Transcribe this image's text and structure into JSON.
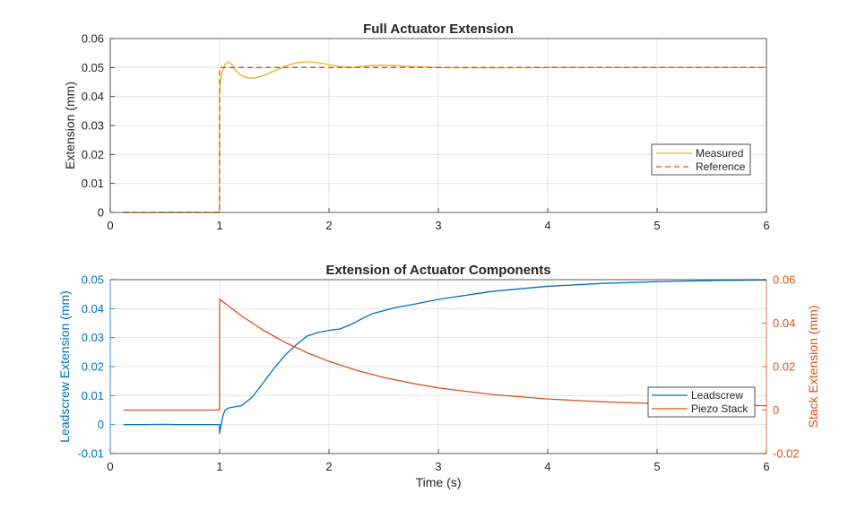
{
  "colors": {
    "measured": "#edb120",
    "reference": "#d95319",
    "leadscrew": "#0072bd",
    "piezo": "#d95319",
    "axis": "#262626",
    "grid": "#dfdfdf"
  },
  "chart_data": [
    {
      "type": "line",
      "title": "Full Actuator Extension",
      "xlabel": "",
      "ylabel": "Extension (mm)",
      "xlim": [
        0,
        6
      ],
      "ylim": [
        0,
        0.06
      ],
      "xticks": [
        "0",
        "1",
        "2",
        "3",
        "4",
        "5",
        "6"
      ],
      "yticks": [
        "0",
        "0.01",
        "0.02",
        "0.03",
        "0.04",
        "0.05",
        "0.06"
      ],
      "grid": true,
      "legend_position": "lower-right",
      "series": [
        {
          "name": "Measured",
          "style": "solid",
          "x": [
            0.12,
            0.999,
            1.0,
            1.005,
            1.02,
            1.05,
            1.08,
            1.1,
            1.13,
            1.16,
            1.2,
            1.25,
            1.3,
            1.35,
            1.4,
            1.5,
            1.6,
            1.7,
            1.8,
            1.9,
            2.0,
            2.1,
            2.2,
            2.3,
            2.4,
            2.5,
            2.6,
            2.8,
            3.0,
            3.5,
            4.0,
            5.0,
            6.0
          ],
          "y": [
            0,
            0,
            0.04,
            0.045,
            0.048,
            0.0512,
            0.0518,
            0.0515,
            0.05,
            0.0485,
            0.0472,
            0.0465,
            0.0463,
            0.0466,
            0.0472,
            0.0488,
            0.0505,
            0.0516,
            0.052,
            0.0517,
            0.051,
            0.0503,
            0.0501,
            0.0504,
            0.0507,
            0.0508,
            0.0507,
            0.0503,
            0.05,
            0.0499,
            0.05,
            0.05,
            0.05
          ]
        },
        {
          "name": "Reference",
          "style": "dashed",
          "x": [
            0.12,
            0.999,
            1.0,
            6.0
          ],
          "y": [
            0,
            0,
            0.05,
            0.05
          ]
        }
      ]
    },
    {
      "type": "line",
      "title": "Extension of Actuator Components",
      "xlabel": "Time (s)",
      "ylabel": "Leadscrew Extension (mm)",
      "ylabel_right": "Stack Extension (mm)",
      "xlim": [
        0,
        6
      ],
      "ylim": [
        -0.01,
        0.05
      ],
      "ylim_right": [
        -0.02,
        0.06
      ],
      "xticks": [
        "0",
        "1",
        "2",
        "3",
        "4",
        "5",
        "6"
      ],
      "yticks": [
        "-0.01",
        "0",
        "0.01",
        "0.02",
        "0.03",
        "0.04",
        "0.05"
      ],
      "yticks_right": [
        "-0.02",
        "0",
        "0.02",
        "0.04",
        "0.06"
      ],
      "grid": true,
      "legend_position": "lower-right",
      "series": [
        {
          "name": "Leadscrew",
          "axis": "left",
          "x": [
            0.12,
            0.3,
            0.5,
            0.6,
            0.8,
            0.999,
            1.0,
            1.01,
            1.03,
            1.05,
            1.08,
            1.12,
            1.2,
            1.3,
            1.4,
            1.5,
            1.6,
            1.7,
            1.8,
            1.9,
            2.0,
            2.1,
            2.2,
            2.3,
            2.4,
            2.6,
            2.8,
            3.0,
            3.5,
            4.0,
            4.5,
            5.0,
            5.5,
            6.0
          ],
          "y": [
            0,
            0,
            0.0001,
            0,
            0,
            0,
            -0.003,
            -0.001,
            0.003,
            0.005,
            0.0057,
            0.006,
            0.0065,
            0.0095,
            0.0145,
            0.0195,
            0.024,
            0.0275,
            0.0305,
            0.0318,
            0.0325,
            0.033,
            0.0345,
            0.0365,
            0.0383,
            0.0403,
            0.0417,
            0.0432,
            0.046,
            0.0477,
            0.0487,
            0.0493,
            0.0497,
            0.0499
          ]
        },
        {
          "name": "Piezo Stack",
          "axis": "right",
          "x": [
            0.12,
            0.999,
            1.0,
            1.2,
            1.4,
            1.6,
            1.8,
            2.0,
            2.25,
            2.5,
            2.75,
            3.0,
            3.5,
            4.0,
            4.5,
            5.0,
            5.5,
            6.0
          ],
          "y": [
            0,
            0,
            0.051,
            0.0433,
            0.0367,
            0.0311,
            0.0264,
            0.0224,
            0.0183,
            0.015,
            0.0124,
            0.0102,
            0.0071,
            0.0051,
            0.0038,
            0.003,
            0.0024,
            0.002
          ]
        }
      ]
    }
  ]
}
